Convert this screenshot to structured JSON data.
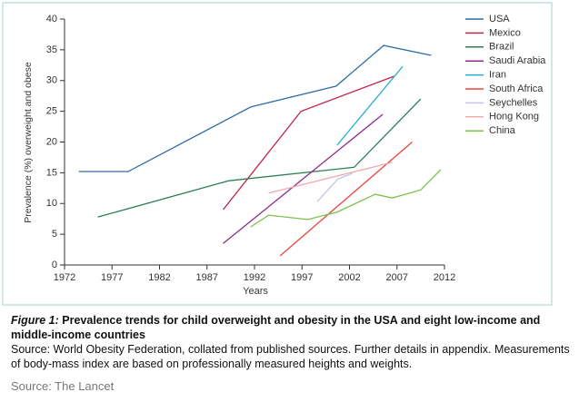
{
  "chart_data": {
    "type": "line",
    "x_label": "Years",
    "y_label": "Prevalence (%) overweight and obese",
    "xlim": [
      1972,
      2012
    ],
    "xticks": [
      1972,
      1977,
      1982,
      1987,
      1992,
      1997,
      2002,
      2007,
      2012
    ],
    "ylim": [
      0,
      40
    ],
    "yticks": [
      0,
      5,
      10,
      15,
      20,
      25,
      30,
      35,
      40
    ],
    "legend": "top-right",
    "series": [
      {
        "name": "USA",
        "color": "#2f6aa8",
        "x": [
          1973.5,
          1978.7,
          1991.6,
          2000.6,
          2005.6,
          2010.6
        ],
        "values": [
          15.2,
          15.2,
          25.7,
          29.1,
          35.7,
          34.1
        ]
      },
      {
        "name": "Mexico",
        "color": "#c0254a",
        "x": [
          1988.7,
          1996.9,
          2006.7
        ],
        "values": [
          9,
          25,
          30.7
        ]
      },
      {
        "name": "Brazil",
        "color": "#2b7d57",
        "x": [
          1975.5,
          1989.3,
          2002.5,
          2009.5
        ],
        "values": [
          7.8,
          13.7,
          15.9,
          27
        ]
      },
      {
        "name": "Saudi Arabia",
        "color": "#8e2a8e",
        "x": [
          1988.7,
          2005.5
        ],
        "values": [
          3.5,
          24.5
        ]
      },
      {
        "name": "Iran",
        "color": "#2aaed0",
        "x": [
          2000.7,
          2007.6
        ],
        "values": [
          19.5,
          32.3
        ]
      },
      {
        "name": "South Africa",
        "color": "#e8453c",
        "x": [
          1994.7,
          2008.6
        ],
        "values": [
          1.5,
          20
        ]
      },
      {
        "name": "Seychelles",
        "color": "#c4c4e6",
        "x": [
          1998.6,
          2000.8,
          2002.3
        ],
        "values": [
          10.3,
          14,
          14.9
        ]
      },
      {
        "name": "Hong Kong",
        "color": "#f0a8b0",
        "x": [
          1993.5,
          2006.5
        ],
        "values": [
          11.7,
          16.7
        ]
      },
      {
        "name": "China",
        "color": "#7cc14a",
        "x": [
          1991.6,
          1993.5,
          1997.6,
          2000.7,
          2004.7,
          2006.5,
          2009.5,
          2011.6
        ],
        "values": [
          6.2,
          8.1,
          7.4,
          8.6,
          11.5,
          10.9,
          12.2,
          15.5
        ]
      }
    ]
  },
  "caption": {
    "label": "Figure 1:",
    "title": "Prevalence trends for child overweight and obesity in the USA and eight low-income and middle-income countries",
    "text": "Source: World Obesity Federation, collated from published sources. Further details in appendix. Measurements of body-mass index are based on professionally measured heights and weights."
  },
  "footer": "Source: The Lancet"
}
